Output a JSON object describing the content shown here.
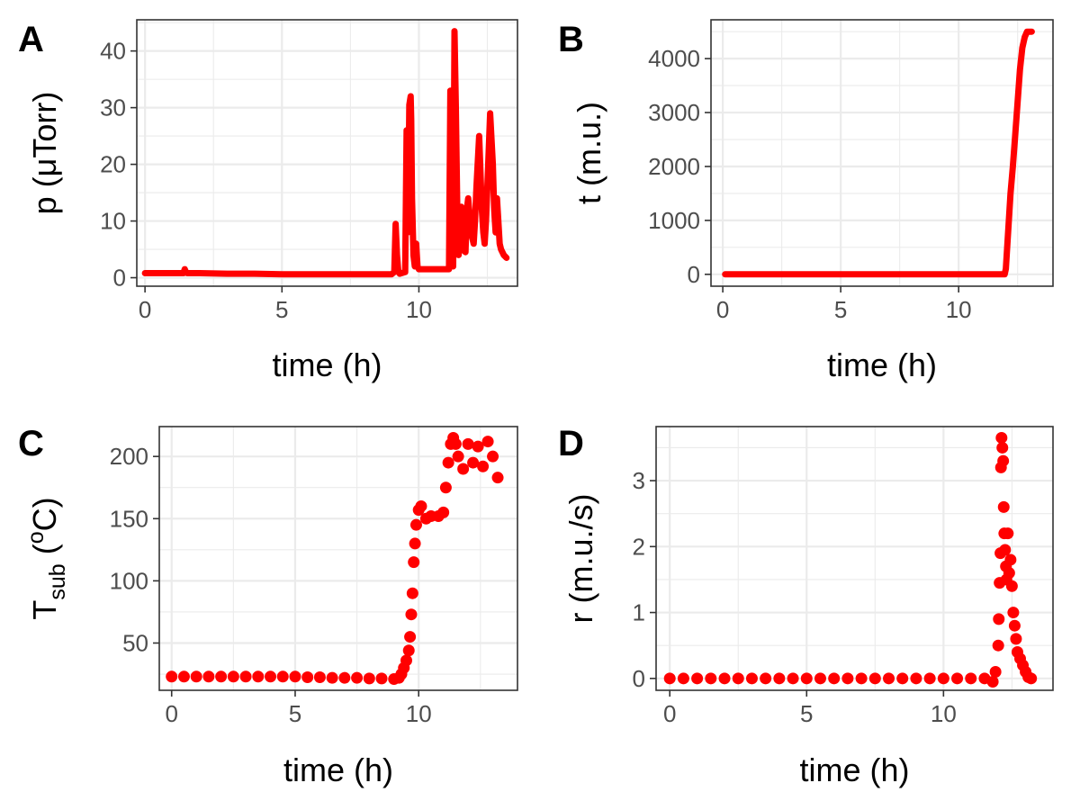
{
  "colors": {
    "series": "#ff0000",
    "grid": "#ebebeb",
    "frame": "#333333",
    "tick_text": "#4d4d4d"
  },
  "chart_data": [
    {
      "panel": "A",
      "type": "line",
      "xlabel": "time (h)",
      "ylabel_parts": [
        "p (",
        "μ",
        "Torr)"
      ],
      "xlim": [
        -0.3,
        13.6
      ],
      "ylim": [
        -1.5,
        45.5
      ],
      "xticks": [
        0,
        5,
        10
      ],
      "xtick_labels": [
        "0",
        "5",
        "10"
      ],
      "yticks": [
        0,
        10,
        20,
        30,
        40
      ],
      "ytick_labels": [
        "0",
        "10",
        "20",
        "30",
        "40"
      ],
      "series": [
        {
          "x": [
            0,
            0.5,
            1.0,
            1.4,
            1.45,
            1.5,
            1.55,
            2,
            3,
            4,
            5,
            6,
            7,
            8,
            9.0,
            9.1,
            9.15,
            9.2,
            9.25,
            9.3,
            9.5,
            9.55,
            9.6,
            9.65,
            9.7,
            9.72,
            9.75,
            9.8,
            9.85,
            9.9,
            9.95,
            10.0,
            10.05,
            10.1,
            10.3,
            10.6,
            10.9,
            11.1,
            11.15,
            11.2,
            11.25,
            11.3,
            11.35,
            11.4,
            11.45,
            11.5,
            11.55,
            11.6,
            11.7,
            11.75,
            11.8,
            11.9,
            12.0,
            12.05,
            12.1,
            12.2,
            12.3,
            12.35,
            12.4,
            12.45,
            12.5,
            12.6,
            12.7,
            12.75,
            12.8,
            12.85,
            12.9,
            12.95,
            13.0,
            13.1,
            13.2
          ],
          "y": [
            0.8,
            0.8,
            0.8,
            0.8,
            1.5,
            0.9,
            0.8,
            0.8,
            0.7,
            0.7,
            0.6,
            0.6,
            0.6,
            0.6,
            0.6,
            1.0,
            9.5,
            4.0,
            1.0,
            0.7,
            1.0,
            26.0,
            8.0,
            30.5,
            32.0,
            28.0,
            14.0,
            4.0,
            2.0,
            6.0,
            2.0,
            1.5,
            1.5,
            1.5,
            1.5,
            1.5,
            1.5,
            1.5,
            33.0,
            25.0,
            2.0,
            43.5,
            30.0,
            12.0,
            4.0,
            8.0,
            12.5,
            5.0,
            4.5,
            12.0,
            14.0,
            8.0,
            6.0,
            10.0,
            16.0,
            25.0,
            12.0,
            8.0,
            6.0,
            10.0,
            16.0,
            29.0,
            20.0,
            12.0,
            8.0,
            14.0,
            10.0,
            6.0,
            5.0,
            4.0,
            3.5
          ]
        }
      ]
    },
    {
      "panel": "B",
      "type": "line",
      "xlabel": "time (h)",
      "ylabel_parts": [
        "t (m.u.)"
      ],
      "xlim": [
        -0.5,
        14.0
      ],
      "ylim": [
        -220,
        4720
      ],
      "xticks": [
        0,
        5,
        10
      ],
      "xtick_labels": [
        "0",
        "5",
        "10"
      ],
      "yticks": [
        0,
        1000,
        2000,
        3000,
        4000
      ],
      "ytick_labels": [
        "0",
        "1000",
        "2000",
        "3000",
        "4000"
      ],
      "series": [
        {
          "x": [
            0.1,
            2,
            4,
            6,
            8,
            10,
            11.5,
            11.95,
            12.0,
            12.1,
            12.2,
            12.3,
            12.4,
            12.5,
            12.6,
            12.7,
            12.8,
            12.9,
            13.0,
            13.1
          ],
          "y": [
            0,
            0,
            0,
            0,
            0,
            0,
            0,
            0,
            100,
            800,
            1500,
            2000,
            2600,
            3200,
            3800,
            4200,
            4400,
            4500,
            4500,
            4500
          ]
        }
      ]
    },
    {
      "panel": "C",
      "type": "scatter",
      "xlabel": "time (h)",
      "ylabel_parts": [
        "T",
        "sub",
        " (",
        "o",
        "C)"
      ],
      "xlim": [
        -0.5,
        14.0
      ],
      "ylim": [
        12,
        224
      ],
      "xticks": [
        0,
        5,
        10
      ],
      "xtick_labels": [
        "0",
        "5",
        "10"
      ],
      "yticks": [
        50,
        100,
        150,
        200
      ],
      "ytick_labels": [
        "50",
        "100",
        "150",
        "200"
      ],
      "series": [
        {
          "x": [
            0,
            0.5,
            1,
            1.5,
            2,
            2.5,
            3,
            3.5,
            4,
            4.5,
            5,
            5.5,
            6,
            6.5,
            7,
            7.5,
            8,
            8.5,
            9,
            9.2,
            9.3,
            9.4,
            9.5,
            9.6,
            9.65,
            9.7,
            9.75,
            9.8,
            9.85,
            9.9,
            10.0,
            10.1,
            10.3,
            10.5,
            10.8,
            11.0,
            11.1,
            11.2,
            11.3,
            11.4,
            11.5,
            11.6,
            11.8,
            12.0,
            12.2,
            12.4,
            12.6,
            12.8,
            13.0,
            13.2
          ],
          "y": [
            23,
            23,
            23,
            23,
            23,
            23,
            23,
            23,
            23,
            23,
            23,
            22.5,
            22.5,
            22,
            22,
            22,
            21.5,
            21.5,
            21,
            22,
            25,
            30,
            36,
            44,
            55,
            73,
            90,
            115,
            130,
            145,
            157,
            160,
            150,
            152,
            152,
            155,
            175,
            195,
            210,
            215,
            210,
            200,
            190,
            210,
            195,
            208,
            192,
            212,
            200,
            183
          ]
        }
      ]
    },
    {
      "panel": "D",
      "type": "scatter",
      "xlabel": "time (h)",
      "ylabel_parts": [
        "r (m.u./s)"
      ],
      "xlim": [
        -0.5,
        14.0
      ],
      "ylim": [
        -0.18,
        3.82
      ],
      "xticks": [
        0,
        5,
        10
      ],
      "xtick_labels": [
        "0",
        "5",
        "10"
      ],
      "yticks": [
        0,
        1,
        2,
        3
      ],
      "ytick_labels": [
        "0",
        "1",
        "2",
        "3"
      ],
      "series": [
        {
          "x": [
            0,
            0.5,
            1,
            1.5,
            2,
            2.5,
            3,
            3.5,
            4,
            4.5,
            5,
            5.5,
            6,
            6.5,
            7,
            7.5,
            8,
            8.5,
            9,
            9.5,
            10,
            10.5,
            11,
            11.5,
            11.8,
            11.9,
            12.0,
            12.02,
            12.05,
            12.08,
            12.1,
            12.12,
            12.15,
            12.18,
            12.2,
            12.22,
            12.25,
            12.28,
            12.3,
            12.35,
            12.4,
            12.45,
            12.5,
            12.55,
            12.6,
            12.65,
            12.7,
            12.8,
            12.9,
            13.0,
            13.1,
            13.2
          ],
          "y": [
            0,
            0,
            0,
            0,
            0,
            0,
            0,
            0,
            0,
            0,
            0,
            0,
            0,
            0,
            0,
            0,
            0,
            0,
            0,
            0,
            0,
            0,
            0,
            0,
            -0.05,
            0.1,
            0.5,
            0.9,
            1.45,
            1.9,
            3.2,
            3.65,
            3.5,
            3.3,
            2.6,
            2.2,
            1.95,
            1.7,
            1.5,
            2.2,
            1.6,
            1.8,
            1.4,
            1.0,
            0.8,
            0.6,
            0.4,
            0.3,
            0.2,
            0.1,
            0.02,
            0
          ]
        }
      ]
    }
  ],
  "panel_letters": [
    "A",
    "B",
    "C",
    "D"
  ]
}
